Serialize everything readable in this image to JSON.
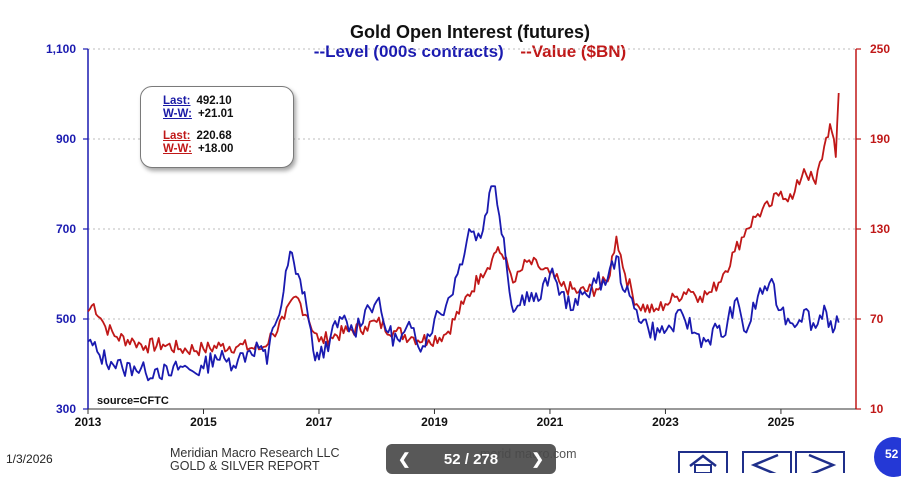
{
  "chart_data": {
    "type": "line",
    "title": "Gold Open Interest (futures)",
    "subtitle_level": "--Level (000s contracts)",
    "subtitle_value": "--Value ($BN)",
    "colors": {
      "level": "#1a1ab0",
      "value": "#c01818"
    },
    "x_ticks": [
      "2013",
      "2015",
      "2017",
      "2019",
      "2021",
      "2023",
      "2025"
    ],
    "x_tick_values": [
      2013,
      2015,
      2017,
      2019,
      2021,
      2023,
      2025
    ],
    "xlim": [
      2013,
      2026.3
    ],
    "y_left_ticks": [
      "300",
      "500",
      "700",
      "900",
      "1,100"
    ],
    "y_left_tick_values": [
      300,
      500,
      700,
      900,
      1100
    ],
    "y_left_lim": [
      300,
      1100
    ],
    "y_right_ticks": [
      "10",
      "70",
      "130",
      "190",
      "250"
    ],
    "y_right_tick_values": [
      10,
      70,
      130,
      190,
      250
    ],
    "y_right_lim": [
      10,
      250
    ],
    "series": [
      {
        "name": "Level (000s contracts)",
        "axis": "left",
        "points": [
          [
            2013.0,
            450
          ],
          [
            2013.2,
            420
          ],
          [
            2013.4,
            405
          ],
          [
            2013.6,
            390
          ],
          [
            2013.8,
            395
          ],
          [
            2014.0,
            380
          ],
          [
            2014.2,
            390
          ],
          [
            2014.4,
            375
          ],
          [
            2014.6,
            395
          ],
          [
            2014.8,
            385
          ],
          [
            2015.0,
            390
          ],
          [
            2015.2,
            420
          ],
          [
            2015.4,
            405
          ],
          [
            2015.6,
            410
          ],
          [
            2015.8,
            430
          ],
          [
            2016.0,
            440
          ],
          [
            2016.1,
            400
          ],
          [
            2016.2,
            480
          ],
          [
            2016.35,
            530
          ],
          [
            2016.5,
            650
          ],
          [
            2016.6,
            600
          ],
          [
            2016.75,
            560
          ],
          [
            2016.9,
            430
          ],
          [
            2017.0,
            410
          ],
          [
            2017.2,
            460
          ],
          [
            2017.4,
            500
          ],
          [
            2017.6,
            470
          ],
          [
            2017.8,
            520
          ],
          [
            2018.0,
            540
          ],
          [
            2018.2,
            470
          ],
          [
            2018.4,
            450
          ],
          [
            2018.6,
            480
          ],
          [
            2018.8,
            440
          ],
          [
            2019.0,
            500
          ],
          [
            2019.2,
            530
          ],
          [
            2019.4,
            600
          ],
          [
            2019.6,
            700
          ],
          [
            2019.8,
            680
          ],
          [
            2019.95,
            780
          ],
          [
            2020.05,
            795
          ],
          [
            2020.2,
            680
          ],
          [
            2020.3,
            560
          ],
          [
            2020.4,
            520
          ],
          [
            2020.6,
            560
          ],
          [
            2020.8,
            540
          ],
          [
            2021.0,
            600
          ],
          [
            2021.2,
            560
          ],
          [
            2021.4,
            520
          ],
          [
            2021.6,
            560
          ],
          [
            2021.8,
            580
          ],
          [
            2022.0,
            590
          ],
          [
            2022.15,
            640
          ],
          [
            2022.3,
            560
          ],
          [
            2022.5,
            520
          ],
          [
            2022.7,
            480
          ],
          [
            2022.9,
            470
          ],
          [
            2023.1,
            480
          ],
          [
            2023.3,
            510
          ],
          [
            2023.5,
            470
          ],
          [
            2023.7,
            450
          ],
          [
            2023.9,
            480
          ],
          [
            2024.0,
            460
          ],
          [
            2024.2,
            540
          ],
          [
            2024.4,
            470
          ],
          [
            2024.6,
            550
          ],
          [
            2024.8,
            580
          ],
          [
            2025.0,
            520
          ],
          [
            2025.2,
            490
          ],
          [
            2025.4,
            520
          ],
          [
            2025.6,
            480
          ],
          [
            2025.75,
            530
          ],
          [
            2025.9,
            470
          ],
          [
            2026.0,
            492
          ]
        ]
      },
      {
        "name": "Value ($BN)",
        "axis": "right",
        "points": [
          [
            2013.0,
            75
          ],
          [
            2013.1,
            80
          ],
          [
            2013.3,
            65
          ],
          [
            2013.5,
            58
          ],
          [
            2013.8,
            55
          ],
          [
            2014.0,
            52
          ],
          [
            2014.3,
            53
          ],
          [
            2014.6,
            50
          ],
          [
            2015.0,
            50
          ],
          [
            2015.3,
            52
          ],
          [
            2015.6,
            52
          ],
          [
            2016.0,
            50
          ],
          [
            2016.2,
            60
          ],
          [
            2016.4,
            70
          ],
          [
            2016.6,
            85
          ],
          [
            2016.8,
            72
          ],
          [
            2017.0,
            55
          ],
          [
            2017.2,
            58
          ],
          [
            2017.5,
            62
          ],
          [
            2017.8,
            65
          ],
          [
            2018.0,
            68
          ],
          [
            2018.3,
            62
          ],
          [
            2018.6,
            58
          ],
          [
            2018.9,
            56
          ],
          [
            2019.2,
            60
          ],
          [
            2019.5,
            80
          ],
          [
            2019.8,
            100
          ],
          [
            2020.0,
            110
          ],
          [
            2020.1,
            118
          ],
          [
            2020.2,
            110
          ],
          [
            2020.4,
            95
          ],
          [
            2020.6,
            108
          ],
          [
            2020.8,
            105
          ],
          [
            2021.0,
            100
          ],
          [
            2021.2,
            92
          ],
          [
            2021.5,
            88
          ],
          [
            2021.8,
            90
          ],
          [
            2022.0,
            95
          ],
          [
            2022.15,
            125
          ],
          [
            2022.3,
            100
          ],
          [
            2022.5,
            80
          ],
          [
            2022.8,
            75
          ],
          [
            2023.0,
            80
          ],
          [
            2023.2,
            85
          ],
          [
            2023.4,
            90
          ],
          [
            2023.6,
            85
          ],
          [
            2023.8,
            88
          ],
          [
            2024.0,
            100
          ],
          [
            2024.2,
            115
          ],
          [
            2024.4,
            130
          ],
          [
            2024.6,
            140
          ],
          [
            2024.8,
            145
          ],
          [
            2025.0,
            155
          ],
          [
            2025.2,
            150
          ],
          [
            2025.4,
            170
          ],
          [
            2025.6,
            160
          ],
          [
            2025.75,
            185
          ],
          [
            2025.85,
            200
          ],
          [
            2025.95,
            178
          ],
          [
            2026.0,
            220.68
          ]
        ]
      }
    ],
    "last_label": "Last:",
    "ww_label": "W-W:",
    "level_last": "492.10",
    "level_ww": "+21.01",
    "value_last": "220.68",
    "value_ww": "+18.00",
    "source": "source=CFTC"
  },
  "footer": {
    "date": "1/3/2026",
    "company": "Meridian Macro Research  LLC",
    "report": "GOLD & SILVER REPORT",
    "url_partial": "merid    macro.com",
    "page_indicator": "52 / 278",
    "badge": "52"
  }
}
